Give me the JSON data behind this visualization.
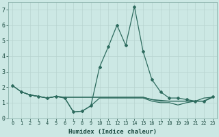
{
  "xlabel": "Humidex (Indice chaleur)",
  "line_color": "#2d6b5e",
  "background_color": "#cce8e4",
  "grid_color": "#b8d4d0",
  "ylim": [
    0,
    7.5
  ],
  "xlim": [
    -0.5,
    23.5
  ],
  "line1_x": [
    0,
    1,
    2,
    3,
    4,
    5,
    6,
    7,
    8,
    9,
    10,
    11,
    12,
    13,
    14,
    15,
    16,
    17,
    18,
    19,
    20,
    21,
    22,
    23
  ],
  "line1_y": [
    2.1,
    1.7,
    1.5,
    1.4,
    1.3,
    1.4,
    1.3,
    0.4,
    0.45,
    0.8,
    1.3,
    1.3,
    1.3,
    1.3,
    1.3,
    1.3,
    1.1,
    1.0,
    1.0,
    0.85,
    1.0,
    1.1,
    1.3,
    1.35
  ],
  "line2_x": [
    1,
    2,
    3,
    4,
    5,
    6,
    7,
    8,
    9,
    10,
    11,
    12,
    13,
    14,
    15,
    16,
    17,
    18,
    19,
    20,
    21,
    22,
    23
  ],
  "line2_y": [
    1.7,
    1.5,
    1.4,
    1.3,
    1.4,
    1.35,
    1.35,
    1.35,
    1.35,
    1.35,
    1.35,
    1.35,
    1.35,
    1.35,
    1.35,
    1.2,
    1.15,
    1.1,
    1.1,
    1.1,
    1.1,
    1.1,
    1.35
  ],
  "line3_x": [
    2,
    3,
    4,
    5,
    6,
    7,
    8,
    9,
    10,
    11,
    12,
    13,
    14,
    15,
    16,
    17,
    18,
    19,
    20,
    21,
    22,
    23
  ],
  "line3_y": [
    1.5,
    1.4,
    1.3,
    1.4,
    1.35,
    1.35,
    1.35,
    1.35,
    1.35,
    1.35,
    1.35,
    1.35,
    1.35,
    1.35,
    1.2,
    1.1,
    1.1,
    1.1,
    1.1,
    1.1,
    1.1,
    1.35
  ],
  "peak_x": [
    0,
    1,
    2,
    3,
    4,
    5,
    6,
    7,
    8,
    9,
    10,
    11,
    12,
    13,
    14,
    15,
    16,
    17,
    18,
    19,
    20,
    21,
    22,
    23
  ],
  "peak_y": [
    2.1,
    1.7,
    1.5,
    1.4,
    1.3,
    1.4,
    1.3,
    0.4,
    0.45,
    0.8,
    3.3,
    4.6,
    6.0,
    4.7,
    7.2,
    4.3,
    2.5,
    1.7,
    1.3,
    1.3,
    1.2,
    1.1,
    1.1,
    1.4
  ]
}
